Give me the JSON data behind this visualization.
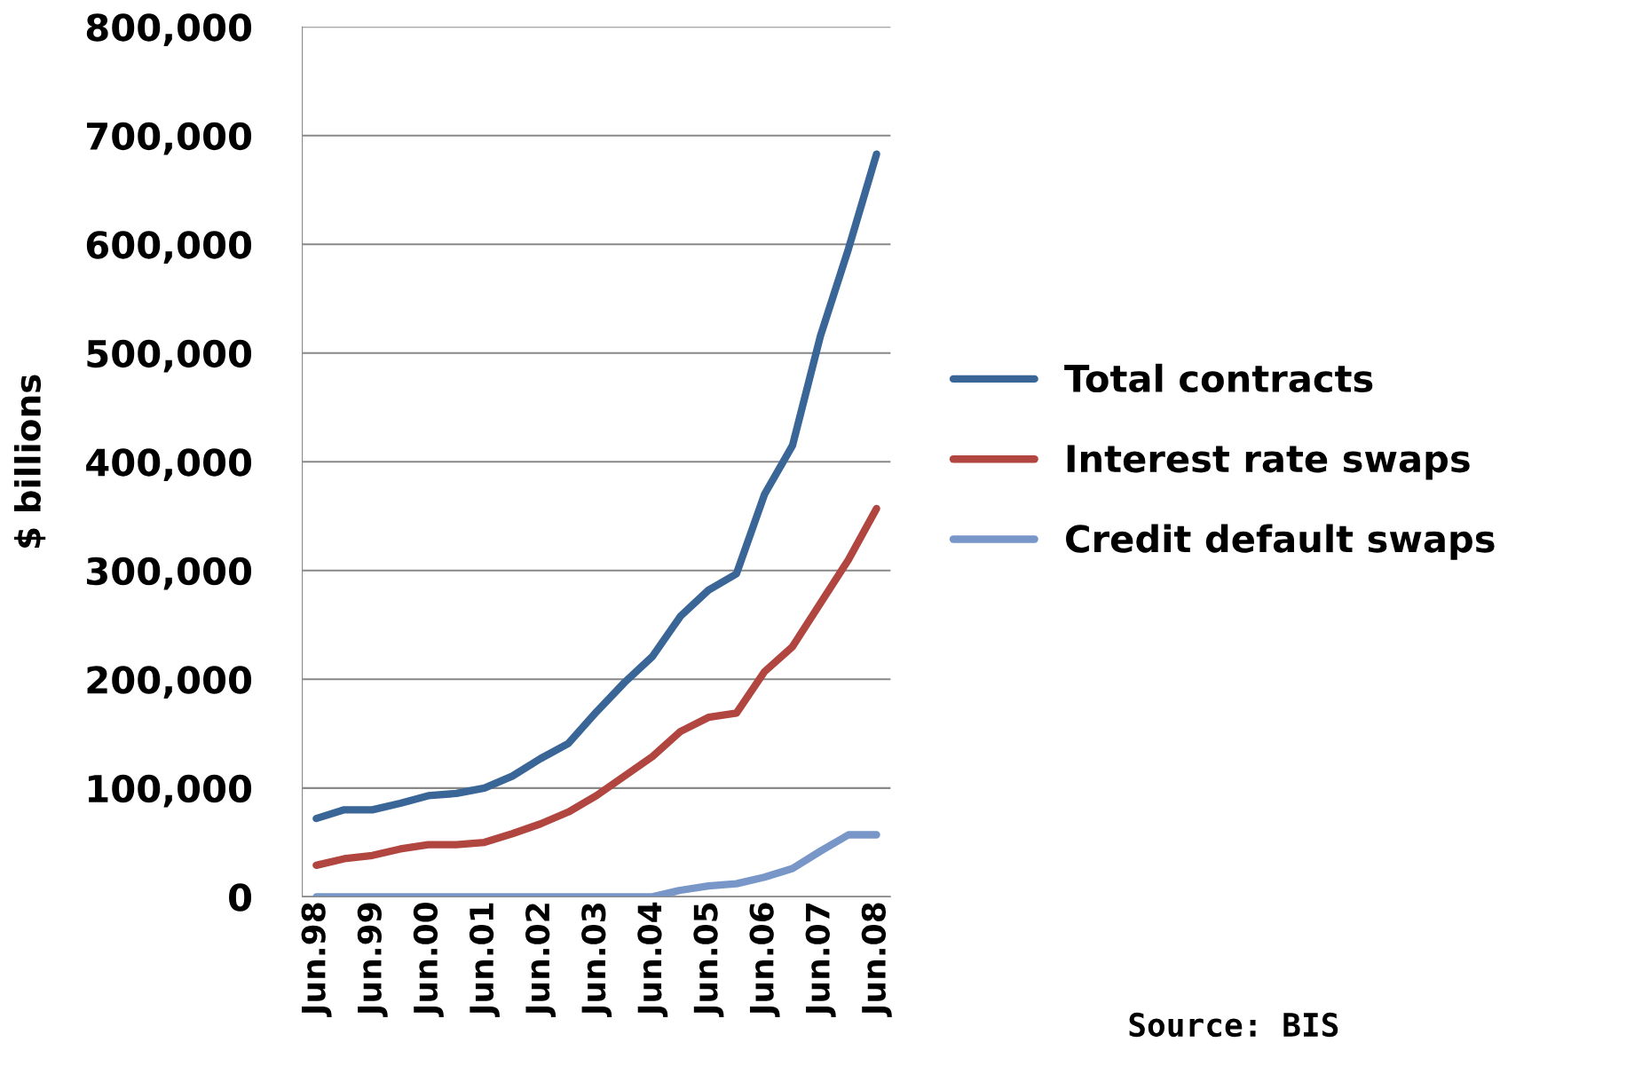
{
  "chart_data": {
    "type": "line",
    "ylabel": "$ billions",
    "categories": [
      "Jun.98",
      null,
      "Jun.99",
      null,
      "Jun.00",
      null,
      "Jun.01",
      null,
      "Jun.02",
      null,
      "Jun.03",
      null,
      "Jun.04",
      null,
      "Jun.05",
      null,
      "Jun.06",
      null,
      "Jun.07",
      null,
      "Jun.08"
    ],
    "series": [
      {
        "name": "Total contracts",
        "color": "#3a6597",
        "values": [
          72000,
          80000,
          80000,
          86000,
          93000,
          95000,
          100000,
          111000,
          127000,
          141000,
          170000,
          197000,
          221000,
          258000,
          282000,
          297000,
          370000,
          415000,
          516000,
          596000,
          683000
        ]
      },
      {
        "name": "Interest rate swaps",
        "color": "#b0463f",
        "values": [
          29000,
          35000,
          38000,
          44000,
          48000,
          48000,
          50000,
          58000,
          67000,
          78000,
          93000,
          111000,
          129000,
          152000,
          165000,
          169000,
          207000,
          230000,
          270000,
          310000,
          357000
        ]
      },
      {
        "name": "Credit default swaps",
        "color": "#7897c8",
        "values": [
          0,
          0,
          0,
          0,
          0,
          0,
          0,
          0,
          0,
          0,
          0,
          0,
          0,
          6000,
          10000,
          12000,
          18000,
          26000,
          42000,
          57000,
          57000
        ]
      }
    ],
    "ylim": [
      0,
      800000
    ],
    "yticks": [
      {
        "value": 0,
        "label": "0"
      },
      {
        "value": 100000,
        "label": "100,000"
      },
      {
        "value": 200000,
        "label": "200,000"
      },
      {
        "value": 300000,
        "label": "300,000"
      },
      {
        "value": 400000,
        "label": "400,000"
      },
      {
        "value": 500000,
        "label": "500,000"
      },
      {
        "value": 600000,
        "label": "600,000"
      },
      {
        "value": 700000,
        "label": "700,000"
      },
      {
        "value": 800000,
        "label": "800,000"
      }
    ],
    "grid": "y",
    "legend": "right",
    "line_style": "solid",
    "marker": "none",
    "annotations": [
      "Source: BIS"
    ]
  }
}
